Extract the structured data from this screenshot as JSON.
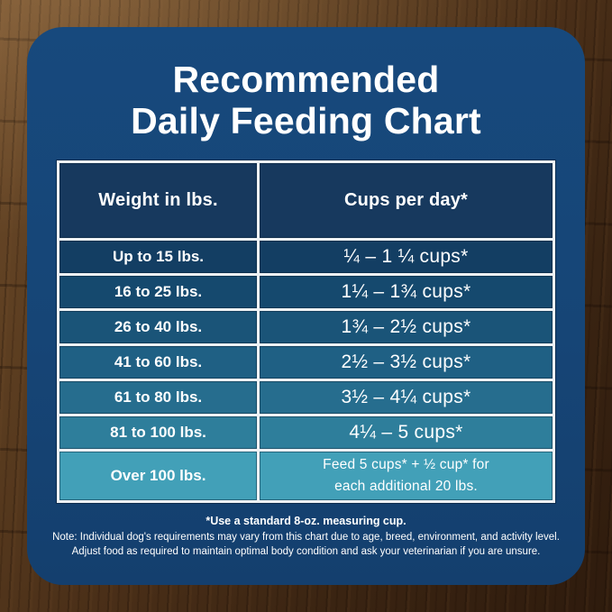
{
  "title": {
    "line1": "Recommended",
    "line2": "Daily Feeding Chart"
  },
  "table": {
    "col1_header": "Weight in lbs.",
    "col2_header": "Cups per day*",
    "rows": [
      {
        "weight": "Up to 15 lbs.",
        "cups": "¼ – 1 ¼ cups*"
      },
      {
        "weight": "16 to 25 lbs.",
        "cups": "1¼ – 1¾ cups*"
      },
      {
        "weight": "26 to 40 lbs.",
        "cups": "1¾ – 2½ cups*"
      },
      {
        "weight": "41 to 60 lbs.",
        "cups": "2½ – 3½ cups*"
      },
      {
        "weight": "61 to 80 lbs.",
        "cups": "3½ – 4¼ cups*"
      },
      {
        "weight": "81 to 100 lbs.",
        "cups": "4¼ – 5 cups*"
      },
      {
        "weight": "Over 100 lbs.",
        "cups_line1": "Feed 5 cups* + ½ cup* for",
        "cups_line2": "each additional 20 lbs."
      }
    ]
  },
  "footnotes": {
    "cup_note": "*Use a standard 8-oz. measuring cup.",
    "note_line1": "Note: Individual dog's requirements may vary from this chart due to age, breed, environment, and activity level.",
    "note_line2": "Adjust food as required to maintain optimal body condition and ask your veterinarian if you are unsure."
  },
  "colors": {
    "card_blue": "#17497d",
    "header_cell": "#17395e",
    "grid_line": "#edf1f4",
    "text": "#ffffff",
    "row_colors": [
      "#133e63",
      "#15496e",
      "#1a5478",
      "#1f6084",
      "#266d8e",
      "#2e7e9b",
      "#42a0b8"
    ]
  },
  "chart_data": {
    "type": "table",
    "title": "Recommended Daily Feeding Chart",
    "columns": [
      "Weight in lbs.",
      "Cups per day*"
    ],
    "rows": [
      [
        "Up to 15 lbs.",
        "¼ – 1 ¼ cups*"
      ],
      [
        "16 to 25 lbs.",
        "1¼ – 1¾ cups*"
      ],
      [
        "26 to 40 lbs.",
        "1¾ – 2½ cups*"
      ],
      [
        "41 to 60 lbs.",
        "2½ – 3½ cups*"
      ],
      [
        "61 to 80 lbs.",
        "3½ – 4¼ cups*"
      ],
      [
        "81 to 100 lbs.",
        "4¼ – 5 cups*"
      ],
      [
        "Over 100 lbs.",
        "Feed 5 cups* + ½ cup* for each additional 20 lbs."
      ]
    ],
    "footnote": "*Use a standard 8-oz. measuring cup."
  }
}
